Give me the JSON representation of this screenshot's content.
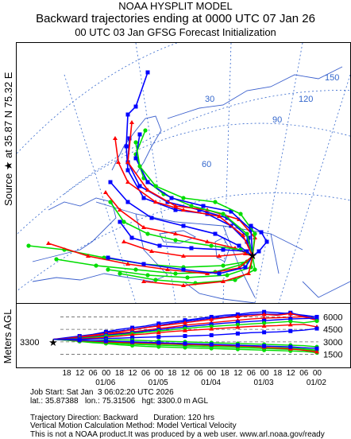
{
  "header": {
    "line1": "NOAA HYSPLIT MODEL",
    "line2": "Backward trajectories ending at 0000 UTC 07 Jan 26",
    "line3": "00 UTC 03 Jan    GFSG  Forecast Initialization"
  },
  "map": {
    "source_label": "Source ★ at   35.87 N   75.32 E",
    "lat_labels": [
      "30",
      "60"
    ],
    "lon_labels": [
      "150",
      "120",
      "90"
    ],
    "source": {
      "lat": 35.87,
      "lon": 75.32
    },
    "colors": {
      "red": "#ff0000",
      "blue": "#0000ff",
      "green": "#00dd00",
      "grid": "#3366cc",
      "coast": "#3a5fcd"
    }
  },
  "altitude": {
    "axis_label": "Meters AGL",
    "start_height_label": "3300",
    "yticks": [
      "6000",
      "4500",
      "3000",
      "1500"
    ],
    "ytick_values": [
      6000,
      4500,
      3000,
      1500
    ],
    "xticks": [
      "18",
      "12",
      "06",
      "00",
      "18",
      "12",
      "06",
      "00",
      "18",
      "12",
      "06",
      "00",
      "18",
      "12",
      "06",
      "00",
      "18",
      "12",
      "06",
      "00"
    ],
    "date_labels": [
      "01/06",
      "01/05",
      "01/04",
      "01/03",
      "01/02"
    ]
  },
  "footer": {
    "job_start": "Job Start: Sat Jan  3 06:02:20 UTC 2026",
    "coords": "lat.: 35.87388   lon.: 75.31506   hgt: 3300.0 m AGL",
    "direction": "Trajectory Direction: Backward       Duration: 120 hrs",
    "vertical": "Vertical Motion Calculation Method: Model Vertical Velocity",
    "disclaimer": "This is not a NOAA product.It was produced by a web user. www.arl.noaa.gov/ready"
  }
}
